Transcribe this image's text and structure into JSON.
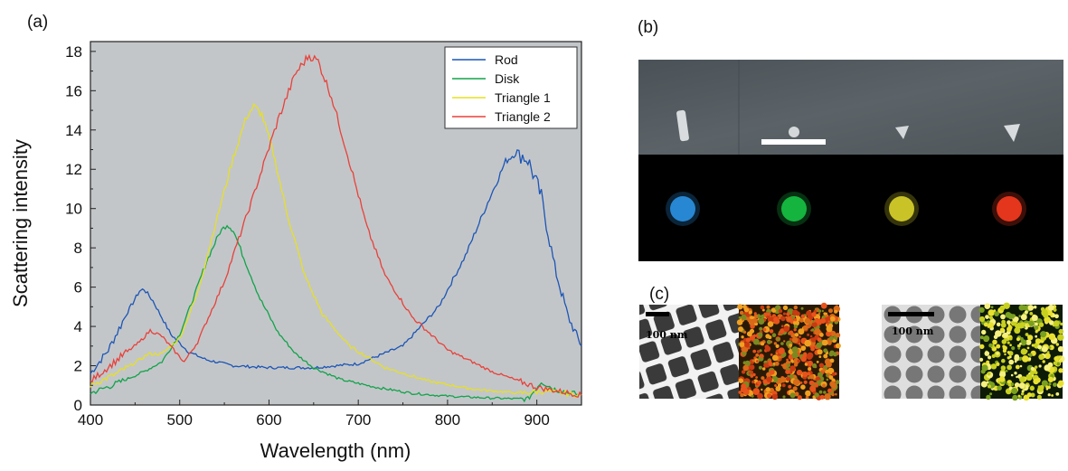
{
  "panels": {
    "a": "(a)",
    "b": "(b)",
    "c": "(c)"
  },
  "tem_images": {
    "left_scale_label": "100 nm",
    "right_scale_label": "100 nm"
  },
  "dark_field_spot_colors": [
    "#2a8fe0",
    "#17c043",
    "#d6cf2a",
    "#f23a20"
  ],
  "chart_data": {
    "type": "line",
    "title": "",
    "xlabel": "Wavelength (nm)",
    "ylabel": "Scattering intensity",
    "xlim": [
      400,
      950
    ],
    "ylim": [
      0,
      18.5
    ],
    "xticks": [
      400,
      500,
      600,
      700,
      800,
      900
    ],
    "yticks": [
      0,
      2,
      4,
      6,
      8,
      10,
      12,
      14,
      16,
      18
    ],
    "background": "#c3c6c9",
    "legend_position": "top-right",
    "series": [
      {
        "name": "Rod",
        "color": "#1c55b5",
        "points": [
          [
            400,
            1.6
          ],
          [
            420,
            2.8
          ],
          [
            440,
            4.6
          ],
          [
            455,
            5.8
          ],
          [
            460,
            5.9
          ],
          [
            470,
            5.3
          ],
          [
            490,
            3.6
          ],
          [
            510,
            2.7
          ],
          [
            530,
            2.3
          ],
          [
            560,
            2.0
          ],
          [
            600,
            1.9
          ],
          [
            650,
            1.9
          ],
          [
            700,
            2.1
          ],
          [
            750,
            3.0
          ],
          [
            790,
            5.0
          ],
          [
            820,
            7.6
          ],
          [
            845,
            10.3
          ],
          [
            865,
            12.4
          ],
          [
            878,
            12.9
          ],
          [
            890,
            12.5
          ],
          [
            905,
            10.6
          ],
          [
            920,
            7.0
          ],
          [
            935,
            4.5
          ],
          [
            950,
            3.0
          ]
        ]
      },
      {
        "name": "Disk",
        "color": "#11a34a",
        "points": [
          [
            400,
            0.6
          ],
          [
            430,
            1.1
          ],
          [
            460,
            1.7
          ],
          [
            480,
            2.2
          ],
          [
            500,
            3.6
          ],
          [
            515,
            5.4
          ],
          [
            530,
            7.3
          ],
          [
            545,
            8.8
          ],
          [
            553,
            9.2
          ],
          [
            560,
            8.9
          ],
          [
            570,
            7.7
          ],
          [
            590,
            5.4
          ],
          [
            610,
            3.7
          ],
          [
            630,
            2.6
          ],
          [
            650,
            1.9
          ],
          [
            680,
            1.3
          ],
          [
            720,
            0.9
          ],
          [
            760,
            0.6
          ],
          [
            800,
            0.45
          ],
          [
            850,
            0.35
          ],
          [
            890,
            0.3
          ],
          [
            905,
            1.2
          ],
          [
            920,
            0.8
          ],
          [
            950,
            0.5
          ]
        ]
      },
      {
        "name": "Triangle 1",
        "color": "#e6e024",
        "points": [
          [
            400,
            1.0
          ],
          [
            430,
            1.6
          ],
          [
            455,
            2.3
          ],
          [
            465,
            2.6
          ],
          [
            480,
            2.6
          ],
          [
            500,
            3.4
          ],
          [
            520,
            5.7
          ],
          [
            540,
            9.2
          ],
          [
            560,
            12.6
          ],
          [
            575,
            14.7
          ],
          [
            583,
            15.2
          ],
          [
            592,
            14.8
          ],
          [
            605,
            12.8
          ],
          [
            620,
            9.8
          ],
          [
            640,
            6.6
          ],
          [
            660,
            4.6
          ],
          [
            690,
            3.0
          ],
          [
            730,
            1.9
          ],
          [
            780,
            1.2
          ],
          [
            830,
            0.8
          ],
          [
            880,
            0.6
          ],
          [
            910,
            0.7
          ],
          [
            950,
            0.5
          ]
        ]
      },
      {
        "name": "Triangle 2",
        "color": "#e8413a",
        "points": [
          [
            400,
            1.2
          ],
          [
            430,
            2.3
          ],
          [
            455,
            3.2
          ],
          [
            467,
            3.8
          ],
          [
            480,
            3.5
          ],
          [
            497,
            2.6
          ],
          [
            505,
            2.2
          ],
          [
            520,
            3.2
          ],
          [
            550,
            6.3
          ],
          [
            580,
            10.3
          ],
          [
            610,
            14.5
          ],
          [
            630,
            16.9
          ],
          [
            645,
            17.8
          ],
          [
            655,
            17.5
          ],
          [
            670,
            15.7
          ],
          [
            690,
            12.4
          ],
          [
            710,
            9.0
          ],
          [
            730,
            6.6
          ],
          [
            760,
            4.5
          ],
          [
            800,
            2.8
          ],
          [
            850,
            1.7
          ],
          [
            900,
            0.9
          ],
          [
            950,
            0.5
          ]
        ]
      }
    ]
  }
}
